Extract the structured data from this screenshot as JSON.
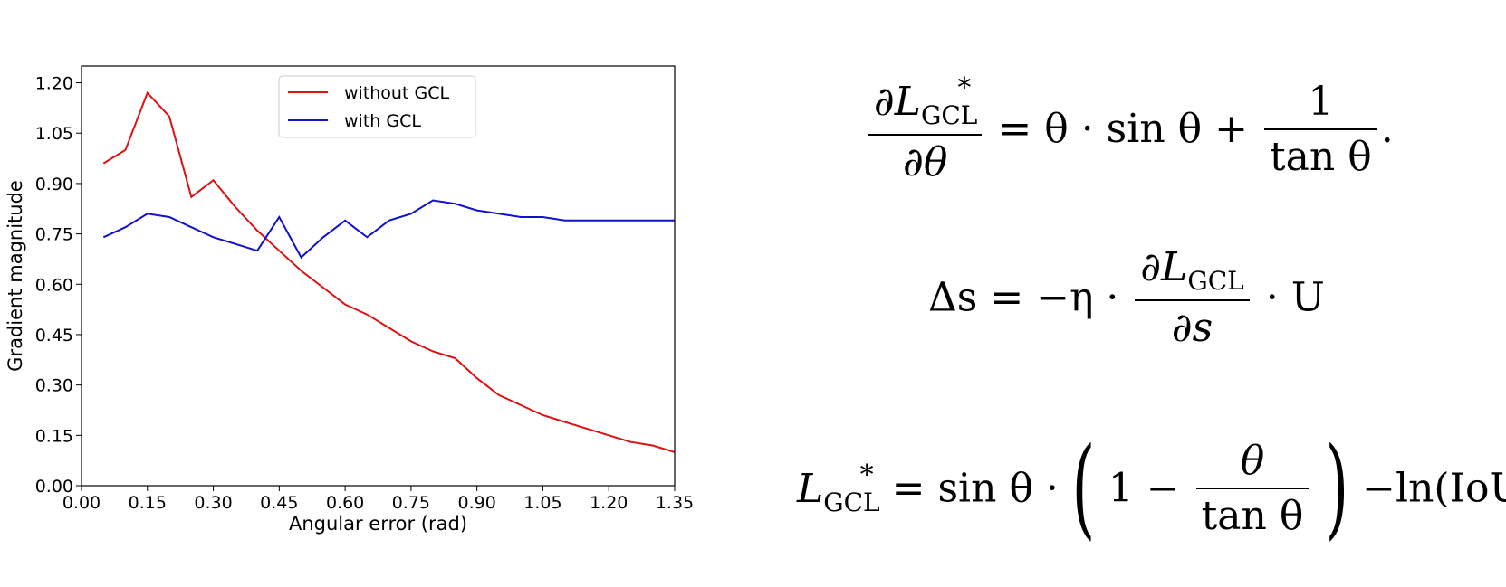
{
  "chart_data": {
    "type": "line",
    "xlabel": "Angular error (rad)",
    "ylabel": "Gradient magnitude",
    "xlim": [
      0.0,
      1.35
    ],
    "ylim": [
      0.0,
      1.25
    ],
    "xticks": [
      "0.00",
      "0.15",
      "0.30",
      "0.45",
      "0.60",
      "0.75",
      "0.90",
      "1.05",
      "1.20",
      "1.35"
    ],
    "yticks": [
      "0.00",
      "0.15",
      "0.30",
      "0.45",
      "0.60",
      "0.75",
      "0.90",
      "1.05",
      "1.20"
    ],
    "grid": false,
    "legend_position": "top-center",
    "series": [
      {
        "name": "without GCL",
        "color": "#dd1111",
        "x": [
          0.05,
          0.1,
          0.15,
          0.2,
          0.25,
          0.3,
          0.35,
          0.4,
          0.45,
          0.5,
          0.55,
          0.6,
          0.65,
          0.7,
          0.75,
          0.8,
          0.85,
          0.9,
          0.95,
          1.0,
          1.05,
          1.1,
          1.15,
          1.2,
          1.25,
          1.3,
          1.35
        ],
        "y": [
          0.96,
          1.0,
          1.17,
          1.1,
          0.86,
          0.91,
          0.83,
          0.76,
          0.7,
          0.64,
          0.59,
          0.54,
          0.51,
          0.47,
          0.43,
          0.4,
          0.38,
          0.32,
          0.27,
          0.24,
          0.21,
          0.19,
          0.17,
          0.15,
          0.13,
          0.12,
          0.1
        ]
      },
      {
        "name": "with GCL",
        "color": "#1111cc",
        "x": [
          0.05,
          0.1,
          0.15,
          0.2,
          0.25,
          0.3,
          0.35,
          0.4,
          0.45,
          0.5,
          0.55,
          0.6,
          0.65,
          0.7,
          0.75,
          0.8,
          0.85,
          0.9,
          0.95,
          1.0,
          1.05,
          1.1,
          1.15,
          1.2,
          1.25,
          1.3,
          1.35
        ],
        "y": [
          0.74,
          0.77,
          0.81,
          0.8,
          0.77,
          0.74,
          0.72,
          0.7,
          0.8,
          0.68,
          0.74,
          0.79,
          0.74,
          0.79,
          0.81,
          0.85,
          0.84,
          0.82,
          0.81,
          0.8,
          0.8,
          0.79,
          0.79,
          0.79,
          0.79,
          0.79,
          0.79
        ]
      }
    ]
  },
  "equations": {
    "eq1": {
      "partial_num": "∂",
      "L": "L",
      "star": "*",
      "gcl": "GCL",
      "partial_den": "∂θ",
      "rhs_a": "= θ · sin θ +",
      "one": "1",
      "tan": "tan θ",
      "period": "."
    },
    "eq2": {
      "lhs": "Δs = −η ·",
      "partial_num": "∂",
      "L": "L",
      "gcl": "GCL",
      "partial_den": "∂s",
      "rhs": "· U"
    },
    "eq3": {
      "L": "L",
      "star": "*",
      "gcl": "GCL",
      "rhs_a": "= sin θ ·",
      "lparen": "(",
      "one_minus": "1 −",
      "theta": "θ",
      "tan": "tan θ",
      "rparen": ")",
      "rhs_b": "−ln(IoU)"
    }
  }
}
